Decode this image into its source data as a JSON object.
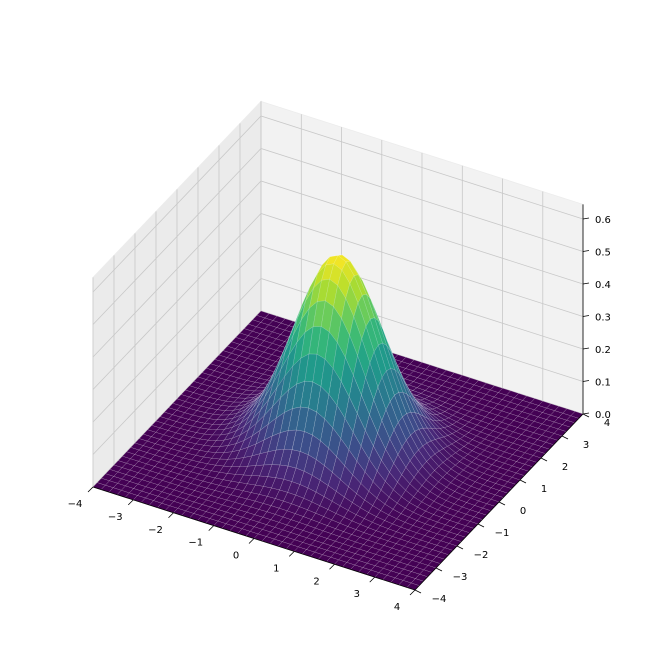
{
  "chart_data": {
    "type": "surface3d",
    "title": "",
    "xlabel": "",
    "ylabel": "",
    "zlabel": "",
    "function": "z = exp(-(x^2+y^2)/2) / (2*pi) * 4 (gaussian bump centred at origin, peak ~0.6)",
    "x_range": [
      -4,
      4
    ],
    "y_range": [
      -4,
      4
    ],
    "zlim": [
      0,
      0.6
    ],
    "peak": {
      "x": 0,
      "y": 0,
      "z": 0.6
    },
    "x_ticks": [
      "−4",
      "−3",
      "−2",
      "−1",
      "0",
      "1",
      "2",
      "3",
      "4"
    ],
    "x_tick_values": [
      -4,
      -3,
      -2,
      -1,
      0,
      1,
      2,
      3,
      4
    ],
    "y_ticks": [
      "−4",
      "−3",
      "−2",
      "−1",
      "0",
      "1",
      "2",
      "3",
      "4"
    ],
    "y_tick_values": [
      -4,
      -3,
      -2,
      -1,
      0,
      1,
      2,
      3,
      4
    ],
    "z_ticks": [
      "0.0",
      "0.1",
      "0.2",
      "0.3",
      "0.4",
      "0.5",
      "0.6"
    ],
    "z_tick_values": [
      0,
      0.1,
      0.2,
      0.3,
      0.4,
      0.5,
      0.6
    ],
    "colormap": "viridis",
    "grid": true,
    "colors": {
      "pane_left": "#ebebeb",
      "pane_right": "#f2f2f2",
      "pane_floor": "#f7f7f7",
      "grid": "#c8c8c8",
      "low": "#440154",
      "high": "#fde725"
    }
  }
}
